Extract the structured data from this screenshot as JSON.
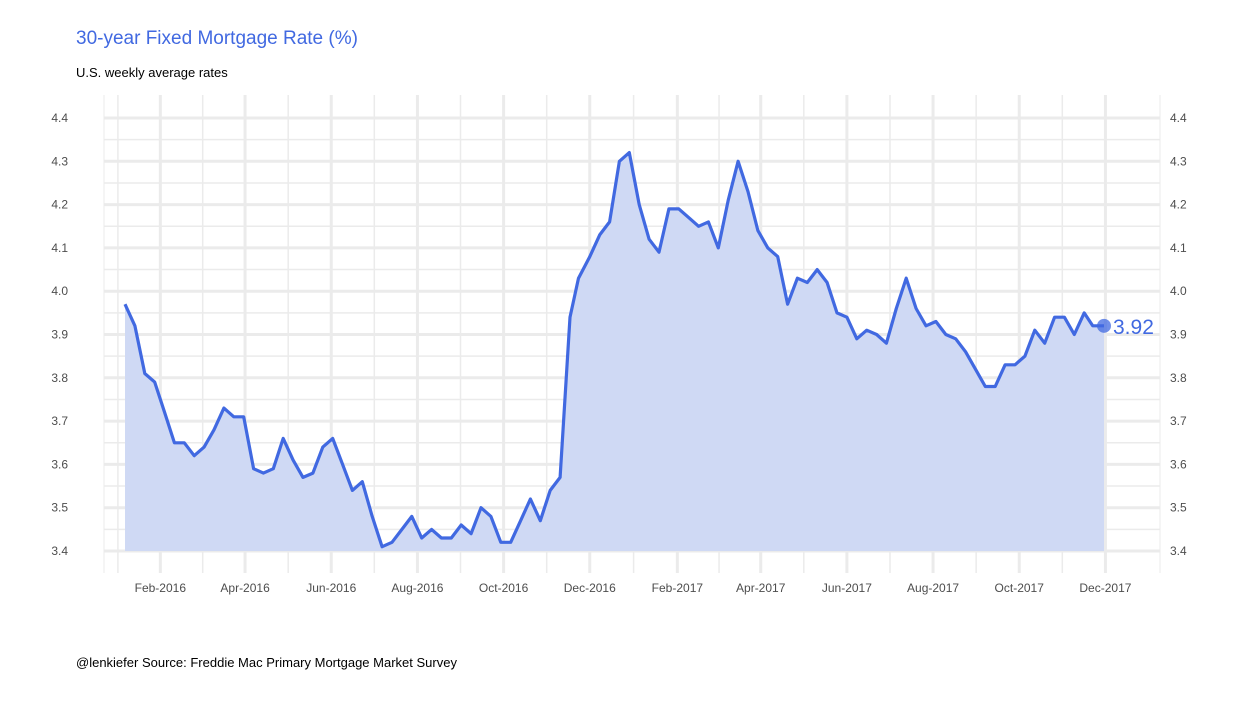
{
  "chart_data": {
    "type": "area",
    "title": "30-year Fixed Mortgage Rate (%)",
    "subtitle": "U.S. weekly average rates",
    "caption": "@lenkiefer Source: Freddie Mac Primary Mortgage Market Survey",
    "xlabel": "",
    "ylabel": "",
    "xlim": [
      "2016-01-01",
      "2017-12-06"
    ],
    "ylim": [
      3.4,
      4.4
    ],
    "x_ticks": [
      "2016-02-01",
      "2016-04-01",
      "2016-06-01",
      "2016-08-01",
      "2016-10-01",
      "2016-12-01",
      "2017-02-01",
      "2017-04-01",
      "2017-06-01",
      "2017-08-01",
      "2017-10-01",
      "2017-12-01"
    ],
    "x_tick_labels": [
      "Feb-2016",
      "Apr-2016",
      "Jun-2016",
      "Aug-2016",
      "Oct-2016",
      "Dec-2016",
      "Feb-2017",
      "Apr-2017",
      "Jun-2017",
      "Aug-2017",
      "Oct-2017",
      "Dec-2017"
    ],
    "y_ticks": [
      3.4,
      3.5,
      3.6,
      3.7,
      3.8,
      3.9,
      4.0,
      4.1,
      4.2,
      4.3,
      4.4
    ],
    "y_tick_labels": [
      "3.4",
      "3.5",
      "3.6",
      "3.7",
      "3.8",
      "3.9",
      "4.0",
      "4.1",
      "4.2",
      "4.3",
      "4.4"
    ],
    "secondary_y_axis": true,
    "grid": true,
    "colors": {
      "line": "#4169e1",
      "fill": "#cfd9f4",
      "title": "#4169e1",
      "grid": "#ebebeb"
    },
    "end_label": "3.92",
    "series": [
      {
        "x": [
          "2016-01-07",
          "2016-01-14",
          "2016-01-21",
          "2016-01-28",
          "2016-02-04",
          "2016-02-11",
          "2016-02-18",
          "2016-02-25",
          "2016-03-03",
          "2016-03-10",
          "2016-03-17",
          "2016-03-24",
          "2016-03-31",
          "2016-04-07",
          "2016-04-14",
          "2016-04-21",
          "2016-04-28",
          "2016-05-05",
          "2016-05-12",
          "2016-05-19",
          "2016-05-26",
          "2016-06-02",
          "2016-06-09",
          "2016-06-16",
          "2016-06-23",
          "2016-06-30",
          "2016-07-07",
          "2016-07-14",
          "2016-07-21",
          "2016-07-28",
          "2016-08-04",
          "2016-08-11",
          "2016-08-18",
          "2016-08-25",
          "2016-09-01",
          "2016-09-08",
          "2016-09-15",
          "2016-09-22",
          "2016-09-29",
          "2016-10-06",
          "2016-10-13",
          "2016-10-20",
          "2016-10-27",
          "2016-11-03",
          "2016-11-10",
          "2016-11-17",
          "2016-11-23",
          "2016-12-01",
          "2016-12-08",
          "2016-12-15",
          "2016-12-22",
          "2016-12-29",
          "2017-01-05",
          "2017-01-12",
          "2017-01-19",
          "2017-01-26",
          "2017-02-02",
          "2017-02-09",
          "2017-02-16",
          "2017-02-23",
          "2017-03-02",
          "2017-03-09",
          "2017-03-16",
          "2017-03-23",
          "2017-03-30",
          "2017-04-06",
          "2017-04-13",
          "2017-04-20",
          "2017-04-27",
          "2017-05-04",
          "2017-05-11",
          "2017-05-18",
          "2017-05-25",
          "2017-06-01",
          "2017-06-08",
          "2017-06-15",
          "2017-06-22",
          "2017-06-29",
          "2017-07-06",
          "2017-07-13",
          "2017-07-20",
          "2017-07-27",
          "2017-08-03",
          "2017-08-10",
          "2017-08-17",
          "2017-08-24",
          "2017-08-31",
          "2017-09-07",
          "2017-09-14",
          "2017-09-21",
          "2017-09-28",
          "2017-10-05",
          "2017-10-12",
          "2017-10-19",
          "2017-10-26",
          "2017-11-02",
          "2017-11-09",
          "2017-11-16",
          "2017-11-22",
          "2017-11-30"
        ],
        "values": [
          3.97,
          3.92,
          3.81,
          3.79,
          3.72,
          3.65,
          3.65,
          3.62,
          3.64,
          3.68,
          3.73,
          3.71,
          3.71,
          3.59,
          3.58,
          3.59,
          3.66,
          3.61,
          3.57,
          3.58,
          3.64,
          3.66,
          3.6,
          3.54,
          3.56,
          3.48,
          3.41,
          3.42,
          3.45,
          3.48,
          3.43,
          3.45,
          3.43,
          3.43,
          3.46,
          3.44,
          3.5,
          3.48,
          3.42,
          3.42,
          3.47,
          3.52,
          3.47,
          3.54,
          3.57,
          3.94,
          4.03,
          4.08,
          4.13,
          4.16,
          4.3,
          4.32,
          4.2,
          4.12,
          4.09,
          4.19,
          4.19,
          4.17,
          4.15,
          4.16,
          4.1,
          4.21,
          4.3,
          4.23,
          4.14,
          4.1,
          4.08,
          3.97,
          4.03,
          4.02,
          4.05,
          4.02,
          3.95,
          3.94,
          3.89,
          3.91,
          3.9,
          3.88,
          3.96,
          4.03,
          3.96,
          3.92,
          3.93,
          3.9,
          3.89,
          3.86,
          3.82,
          3.78,
          3.78,
          3.83,
          3.83,
          3.85,
          3.91,
          3.88,
          3.94,
          3.94,
          3.9,
          3.95,
          3.92,
          3.92
        ]
      }
    ]
  }
}
